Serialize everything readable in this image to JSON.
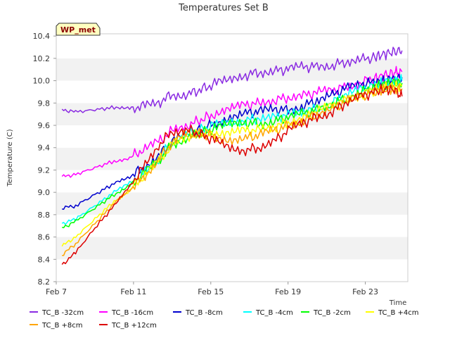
{
  "chart_data": {
    "type": "line",
    "title": "Temperatures Set B",
    "xlabel": "Time",
    "ylabel": "Temperature (C)",
    "badge": "WP_met",
    "x_ticks": [
      "Feb 7",
      "Feb 11",
      "Feb 15",
      "Feb 19",
      "Feb 23"
    ],
    "y_ticks": [
      "8.2",
      "8.4",
      "8.6",
      "8.8",
      "9.0",
      "9.2",
      "9.4",
      "9.6",
      "9.8",
      "10.0",
      "10.2",
      "10.4"
    ],
    "xlim": [
      7,
      25.2
    ],
    "ylim": [
      8.2,
      10.42
    ],
    "grid": "horizontal bands",
    "legend_position": "bottom",
    "x": [
      7.3,
      8.0,
      9.0,
      10.0,
      10.8,
      11.5,
      12.3,
      13.0,
      13.8,
      14.5,
      15.2,
      16.0,
      16.8,
      17.5,
      18.3,
      19.0,
      19.8,
      20.5,
      21.3,
      22.0,
      22.8,
      23.5,
      24.0,
      24.5,
      24.9
    ],
    "series": [
      {
        "name": "TC_B -32cm",
        "color": "#8a2be2",
        "values": [
          9.74,
          9.72,
          9.74,
          9.76,
          9.75,
          9.77,
          9.8,
          9.88,
          9.88,
          9.92,
          9.97,
          10.0,
          10.05,
          10.08,
          10.09,
          10.1,
          10.12,
          10.13,
          10.14,
          10.17,
          10.19,
          10.21,
          10.24,
          10.26,
          10.27
        ]
      },
      {
        "name": "TC_B -16cm",
        "color": "#ff00ff",
        "values": [
          9.14,
          9.16,
          9.22,
          9.28,
          9.31,
          9.38,
          9.45,
          9.55,
          9.6,
          9.65,
          9.7,
          9.74,
          9.78,
          9.8,
          9.83,
          9.85,
          9.87,
          9.89,
          9.91,
          9.95,
          9.99,
          10.02,
          10.05,
          10.07,
          10.08
        ]
      },
      {
        "name": "TC_B -8cm",
        "color": "#0000cd",
        "values": [
          8.86,
          8.88,
          8.98,
          9.08,
          9.14,
          9.22,
          9.33,
          9.45,
          9.52,
          9.56,
          9.62,
          9.68,
          9.71,
          9.72,
          9.74,
          9.74,
          9.78,
          9.82,
          9.87,
          9.93,
          9.97,
          9.99,
          10.0,
          10.02,
          10.03
        ]
      },
      {
        "name": "TC_B -4cm",
        "color": "#00ffff",
        "values": [
          8.72,
          8.76,
          8.88,
          9.0,
          9.08,
          9.18,
          9.3,
          9.45,
          9.52,
          9.56,
          9.6,
          9.64,
          9.65,
          9.66,
          9.67,
          9.69,
          9.72,
          9.76,
          9.81,
          9.87,
          9.92,
          9.96,
          9.99,
          10.0,
          10.0
        ]
      },
      {
        "name": "TC_B -2cm",
        "color": "#00ff00",
        "values": [
          8.68,
          8.74,
          8.86,
          8.98,
          9.06,
          9.16,
          9.28,
          9.43,
          9.5,
          9.53,
          9.57,
          9.6,
          9.62,
          9.62,
          9.64,
          9.67,
          9.7,
          9.74,
          9.79,
          9.85,
          9.9,
          9.94,
          9.97,
          9.98,
          9.98
        ]
      },
      {
        "name": "TC_B +4cm",
        "color": "#ffff00",
        "values": [
          8.52,
          8.6,
          8.76,
          8.92,
          9.02,
          9.14,
          9.28,
          9.42,
          9.5,
          9.52,
          9.53,
          9.53,
          9.55,
          9.56,
          9.59,
          9.63,
          9.67,
          9.72,
          9.77,
          9.83,
          9.88,
          9.92,
          9.94,
          9.95,
          9.95
        ]
      },
      {
        "name": "TC_B +8cm",
        "color": "#ffa500",
        "values": [
          8.44,
          8.54,
          8.72,
          8.9,
          9.02,
          9.14,
          9.3,
          9.44,
          9.52,
          9.52,
          9.5,
          9.48,
          9.49,
          9.51,
          9.55,
          9.6,
          9.65,
          9.7,
          9.75,
          9.81,
          9.86,
          9.9,
          9.92,
          9.93,
          9.93
        ]
      },
      {
        "name": "TC_B +12cm",
        "color": "#dd0000",
        "values": [
          8.35,
          8.46,
          8.68,
          8.88,
          9.05,
          9.22,
          9.42,
          9.55,
          9.56,
          9.52,
          9.46,
          9.4,
          9.38,
          9.4,
          9.46,
          9.55,
          9.62,
          9.68,
          9.73,
          9.8,
          9.86,
          9.9,
          9.92,
          9.92,
          9.86
        ]
      }
    ]
  }
}
